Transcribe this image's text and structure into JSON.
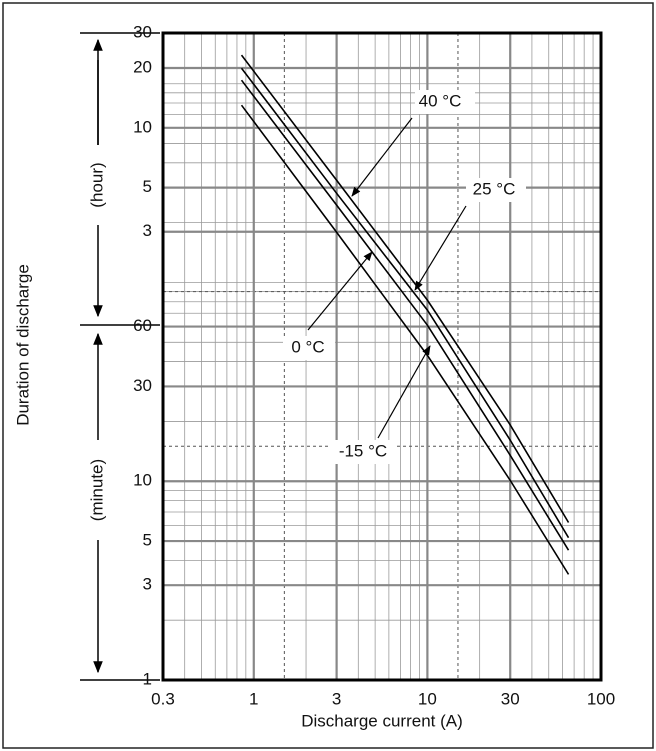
{
  "chart_data": {
    "type": "line",
    "xlabel": "Discharge current (A)",
    "ylabel": "Duration of discharge",
    "ylabel_hour": "(hour)",
    "ylabel_minute": "(minute)",
    "log_x": true,
    "log_y": true,
    "grid": true,
    "minor_grid": true,
    "xlim": [
      0.3,
      100
    ],
    "ylim": [
      1,
      1800
    ],
    "xticks": [
      0.3,
      1,
      3,
      10,
      30,
      100
    ],
    "yticks": [
      1,
      3,
      5,
      10,
      30,
      60,
      {
        "value": 180,
        "label": "3"
      },
      {
        "value": 300,
        "label": "5"
      },
      {
        "value": 600,
        "label": "10"
      },
      {
        "value": 1200,
        "label": "20"
      },
      {
        "value": 1800,
        "label": "30"
      }
    ],
    "reference_x": [
      1.5,
      15
    ],
    "reference_y": [
      15,
      90
    ],
    "series": [
      {
        "name": "40 °C",
        "color": "#000000",
        "x": [
          0.85,
          3,
          10,
          30,
          65
        ],
        "values": [
          1393,
          327,
          81.5,
          19.2,
          6.2
        ]
      },
      {
        "name": "25 °C",
        "color": "#000000",
        "x": [
          0.85,
          3,
          10,
          30,
          65
        ],
        "values": [
          1197,
          281,
          72.6,
          16.1,
          5.2
        ]
      },
      {
        "name": "0 °C",
        "color": "#000000",
        "x": [
          0.85,
          3,
          10,
          30,
          65
        ],
        "values": [
          1042,
          245,
          61,
          13.5,
          4.5
        ]
      },
      {
        "name": "-15 °C",
        "color": "#000000",
        "x": [
          0.85,
          3,
          10,
          30,
          65
        ],
        "values": [
          780,
          179,
          43,
          10.1,
          3.4
        ]
      }
    ]
  }
}
